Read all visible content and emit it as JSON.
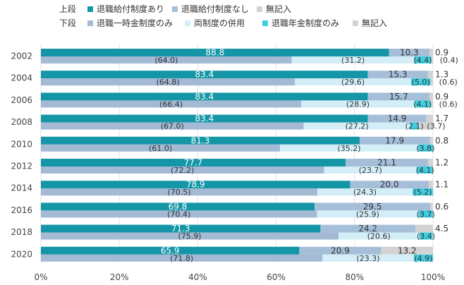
{
  "chart_data": {
    "type": "bar",
    "orientation": "horizontal",
    "stacked": "percent",
    "categories": [
      "2002",
      "2004",
      "2006",
      "2008",
      "2010",
      "2012",
      "2014",
      "2016",
      "2018",
      "2020"
    ],
    "xlim": [
      0,
      100
    ],
    "x_ticks": [
      "0%",
      "20%",
      "40%",
      "60%",
      "80%",
      "100%"
    ],
    "grid": true,
    "legend": {
      "placement": "top-left",
      "upper_label": "上段",
      "lower_label": "下段",
      "upper_items": [
        "退職給付制度あり",
        "退職給付制度なし",
        "無記入"
      ],
      "lower_items": [
        "退職一時金制度のみ",
        "両制度の併用",
        "退職年金制度のみ",
        "無記入"
      ]
    },
    "upper_series": [
      {
        "name": "退職給付制度あり",
        "color": "#1496a6",
        "values": [
          88.8,
          83.4,
          83.4,
          83.4,
          81.3,
          77.7,
          78.9,
          69.8,
          71.3,
          65.9
        ]
      },
      {
        "name": "退職給付制度なし",
        "color": "#a6bfd9",
        "values": [
          10.3,
          15.3,
          15.7,
          14.9,
          17.9,
          21.1,
          20.0,
          29.5,
          24.2,
          20.9
        ]
      },
      {
        "name": "無記入",
        "color": "#d3d3d3",
        "values": [
          0.9,
          1.3,
          0.9,
          1.7,
          0.8,
          1.2,
          1.1,
          0.6,
          4.5,
          13.2
        ]
      }
    ],
    "lower_series": [
      {
        "name": "退職一時金制度のみ",
        "color": "#a3b9d4",
        "values": [
          64.0,
          64.8,
          66.4,
          67.0,
          61.0,
          72.2,
          70.5,
          70.4,
          75.9,
          71.8
        ]
      },
      {
        "name": "両制度の併用",
        "color": "#d3eef7",
        "values": [
          31.2,
          29.6,
          28.9,
          27.2,
          35.2,
          23.7,
          24.3,
          25.9,
          20.6,
          23.3
        ]
      },
      {
        "name": "退職年金制度のみ",
        "color": "#3fcfe0",
        "values": [
          4.4,
          5.0,
          4.1,
          2.1,
          3.8,
          4.1,
          5.2,
          3.7,
          3.4,
          4.9
        ]
      },
      {
        "name": "無記入",
        "color": "#d3d3d3",
        "values": [
          0.4,
          0.6,
          0.6,
          3.7,
          null,
          null,
          null,
          null,
          null,
          null
        ]
      }
    ],
    "upper_labels": [
      [
        "88.8",
        "10.3",
        "0.9"
      ],
      [
        "83.4",
        "15.3",
        "1.3"
      ],
      [
        "83.4",
        "15.7",
        "0.9"
      ],
      [
        "83.4",
        "14.9",
        "1.7"
      ],
      [
        "81.3",
        "17.9",
        "0.8"
      ],
      [
        "77.7",
        "21.1",
        "1.2"
      ],
      [
        "78.9",
        "20.0",
        "1.1"
      ],
      [
        "69.8",
        "29.5",
        "0.6"
      ],
      [
        "71.3",
        "24.2",
        "4.5"
      ],
      [
        "65.9",
        "20.9",
        "13.2"
      ]
    ],
    "lower_labels": [
      [
        "(64.0)",
        "(31.2)",
        "(4.4)",
        "(0.4)"
      ],
      [
        "(64.8)",
        "(29.6)",
        "(5.0)",
        "(0.6)"
      ],
      [
        "(66.4)",
        "(28.9)",
        "(4.1)",
        "(0.6)"
      ],
      [
        "(67.0)",
        "(27.2)",
        "(2.1)",
        "(3.7)"
      ],
      [
        "(61.0)",
        "(35.2)",
        "(3.8)",
        ""
      ],
      [
        "(72.2)",
        "(23.7)",
        "(4.1)",
        ""
      ],
      [
        "(70.5)",
        "(24.3)",
        "(5.2)",
        ""
      ],
      [
        "(70.4)",
        "(25.9)",
        "(3.7)",
        ""
      ],
      [
        "(75.9)",
        "(20.6)",
        "(3.4)",
        ""
      ],
      [
        "(71.8)",
        "(23.3)",
        "(4.9)",
        ""
      ]
    ]
  }
}
